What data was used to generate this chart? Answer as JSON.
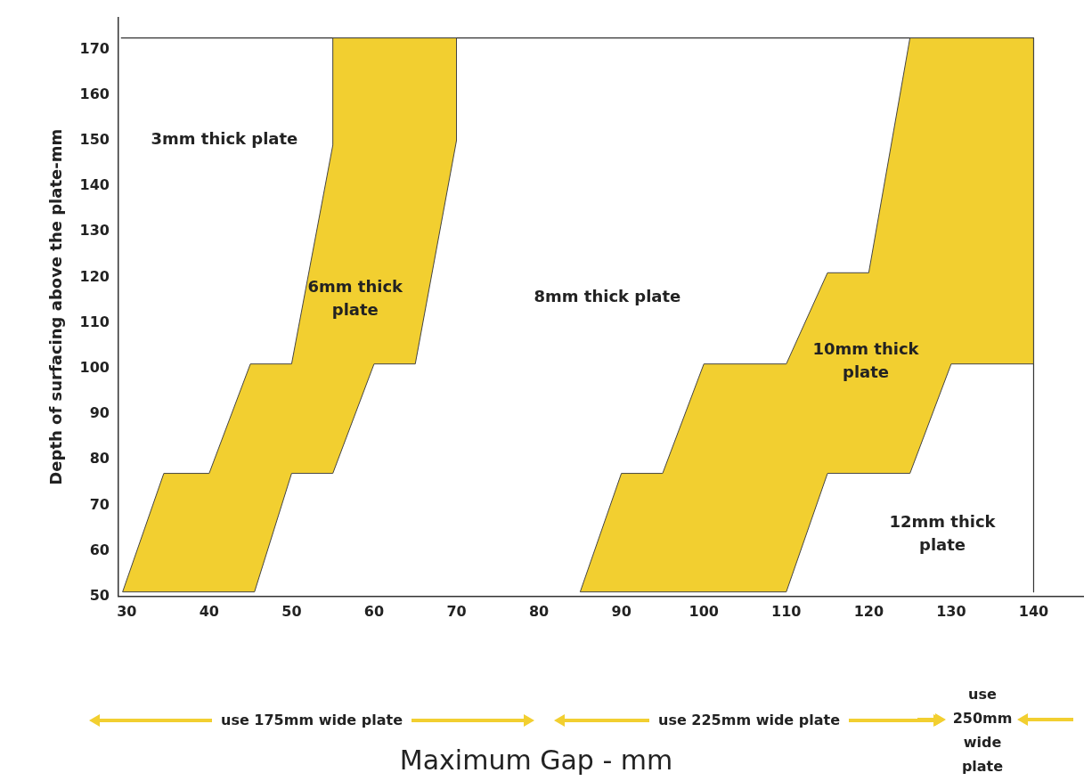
{
  "chart_data": {
    "type": "area",
    "ylabel": "Depth of surfacing above the plate-mm",
    "xlim": [
      29,
      146
    ],
    "xticks": [
      30,
      40,
      50,
      60,
      70,
      80,
      90,
      100,
      110,
      120,
      130,
      140
    ],
    "ylim": [
      50,
      177
    ],
    "yticks": [
      50,
      60,
      70,
      80,
      90,
      100,
      110,
      120,
      130,
      140,
      150,
      160,
      170
    ],
    "grid": false,
    "legend": false,
    "marker": "none",
    "series": [
      {
        "type": "area",
        "color": "#f2cf30",
        "x": [
          29.5,
          34.5,
          40,
          45,
          50,
          55,
          55,
          70,
          70,
          65,
          60,
          55,
          50,
          45.5,
          29.5
        ],
        "values": [
          51,
          77,
          77,
          101,
          101,
          149,
          172.5,
          172.5,
          150,
          101,
          101,
          77,
          77,
          51,
          51
        ]
      },
      {
        "type": "area",
        "color": "#f2cf30",
        "x": [
          85,
          90,
          95,
          100,
          110,
          115,
          120,
          125,
          140,
          140,
          130,
          125,
          115,
          110,
          85
        ],
        "values": [
          51,
          77,
          77,
          101,
          101,
          121,
          121,
          172.5,
          172.5,
          101,
          101,
          77,
          77,
          51,
          51
        ]
      },
      {
        "type": "line",
        "color": "#333333",
        "x": [
          29.3,
          140,
          140
        ],
        "values": [
          172.5,
          172.5,
          51
        ]
      }
    ],
    "annotations": [
      "3mm thick plate",
      "6mm thick\nplate",
      "8mm thick plate",
      "10mm thick\nplate",
      "12mm thick\nplate",
      "use 175mm wide plate",
      "use 225mm wide plate",
      "use\n250mm\nwide\nplate",
      "Maximum Gap - mm"
    ]
  }
}
